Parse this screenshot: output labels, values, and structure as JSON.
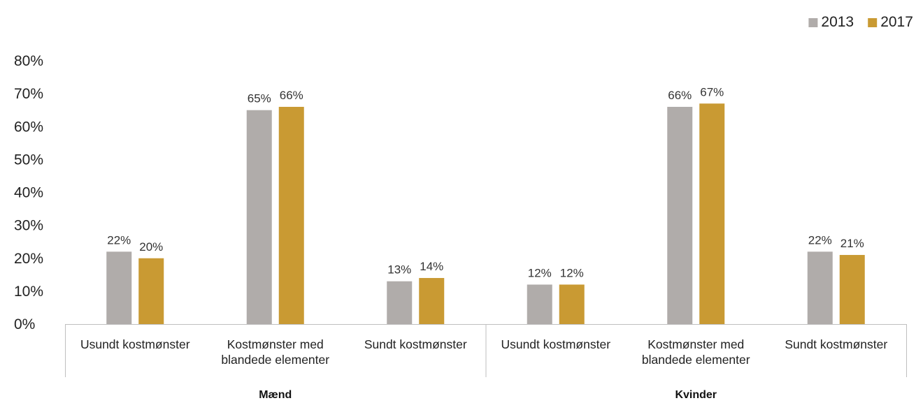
{
  "chart_data": {
    "type": "bar",
    "title": "",
    "xlabel": "",
    "ylabel": "",
    "ylim": [
      0,
      0.8
    ],
    "y_ticks": [
      "0%",
      "10%",
      "20%",
      "30%",
      "40%",
      "50%",
      "60%",
      "70%",
      "80%"
    ],
    "grid": false,
    "legend_position": "top-right",
    "groups": [
      {
        "label": "Mænd",
        "categories": [
          [
            "Usundt kostmønster"
          ],
          [
            "Kostmønster med",
            "blandede elementer"
          ],
          [
            "Sundt kostmønster"
          ]
        ]
      },
      {
        "label": "Kvinder",
        "categories": [
          [
            "Usundt kostmønster"
          ],
          [
            "Kostmønster med",
            "blandede elementer"
          ],
          [
            "Sundt kostmønster"
          ]
        ]
      }
    ],
    "series": [
      {
        "name": "2013",
        "color": "#b0acaa",
        "values": [
          0.22,
          0.65,
          0.13,
          0.12,
          0.66,
          0.22
        ],
        "labels": [
          "22%",
          "65%",
          "13%",
          "12%",
          "66%",
          "22%"
        ]
      },
      {
        "name": "2017",
        "color": "#c99a33",
        "values": [
          0.2,
          0.66,
          0.14,
          0.12,
          0.67,
          0.21
        ],
        "labels": [
          "20%",
          "66%",
          "14%",
          "12%",
          "67%",
          "21%"
        ]
      }
    ]
  }
}
